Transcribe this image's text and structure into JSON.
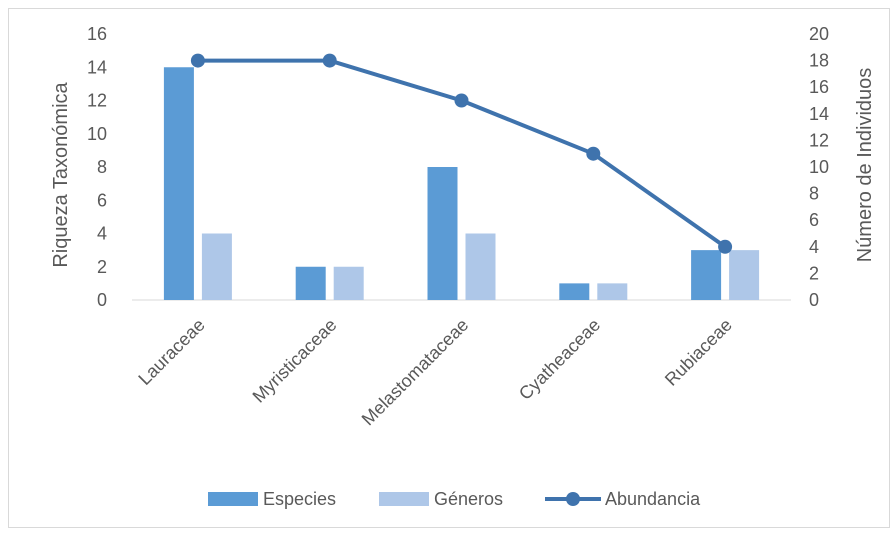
{
  "chart_data": {
    "type": "bar",
    "title": "",
    "categories": [
      "Lauraceae",
      "Myristicaceae",
      "Melastomataceae",
      "Cyatheaceae",
      "Rubiaceae"
    ],
    "series": [
      {
        "name": "Especies",
        "type": "bar",
        "axis": "left",
        "color": "#5b9bd5",
        "values": [
          14,
          2,
          8,
          1,
          3
        ]
      },
      {
        "name": "Géneros",
        "type": "bar",
        "axis": "left",
        "color": "#aec7e8",
        "values": [
          4,
          2,
          4,
          1,
          3
        ]
      },
      {
        "name": "Abundancia",
        "type": "line",
        "axis": "right",
        "color": "#3f73ad",
        "values": [
          18,
          18,
          15,
          11,
          4
        ]
      }
    ],
    "ylabel": "Riqueza Taxonómica",
    "y2label": "Número de Individuos",
    "ylim": [
      0,
      16
    ],
    "y2lim": [
      0,
      20
    ],
    "yticks": [
      0,
      2,
      4,
      6,
      8,
      10,
      12,
      14,
      16
    ],
    "y2ticks": [
      0,
      2,
      4,
      6,
      8,
      10,
      12,
      14,
      16,
      18,
      20
    ],
    "grid": false,
    "legend_position": "bottom"
  }
}
